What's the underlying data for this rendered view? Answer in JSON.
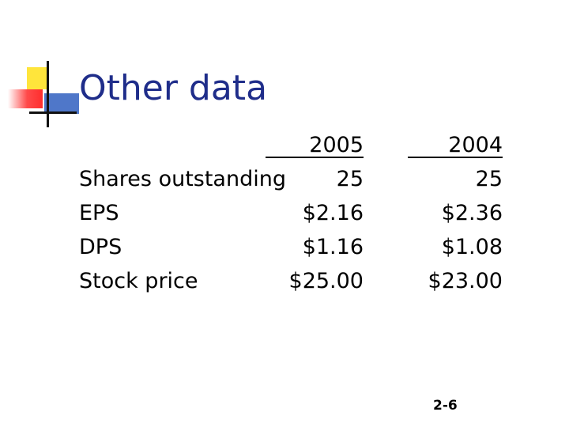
{
  "title": "Other data",
  "table": {
    "headers": [
      "2005",
      "2004"
    ],
    "rows": [
      {
        "label": "Shares outstanding",
        "y2005": "25",
        "y2004": "25"
      },
      {
        "label": "EPS",
        "y2005": "$2.16",
        "y2004": "$2.36"
      },
      {
        "label": "DPS",
        "y2005": "$1.16",
        "y2004": "$1.08"
      },
      {
        "label": "Stock price",
        "y2005": "$25.00",
        "y2004": "$23.00"
      }
    ]
  },
  "page_number": "2-6",
  "colors": {
    "title": "#1f2d8a",
    "logo_yellow": "#ffe53b",
    "logo_red": "#ff2d2d",
    "logo_blue": "#4f77c9"
  }
}
